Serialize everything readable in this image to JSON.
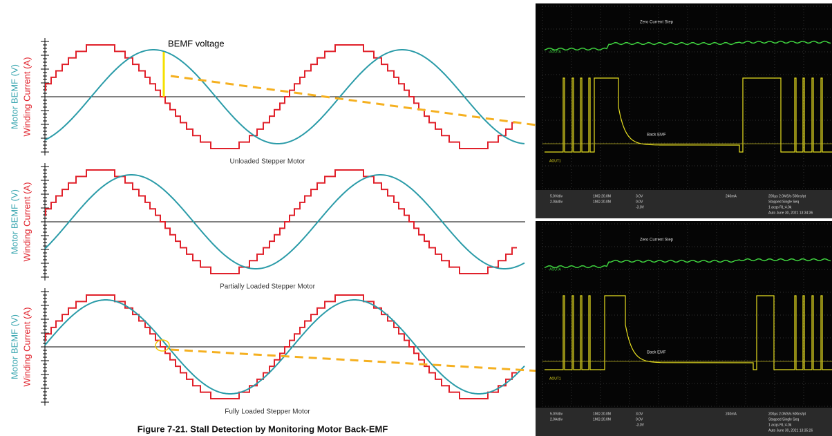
{
  "annotation": "BEMF voltage",
  "figure_caption": "Figure 7-21. Stall Detection by Monitoring Motor Back-EMF",
  "panels": [
    {
      "caption": "Unloaded Stepper Motor",
      "bemf_label": "Motor BEMF (V)",
      "current_label": "Winding Current (A)"
    },
    {
      "caption": "Partially Loaded Stepper Motor",
      "bemf_label": "Motor BEMF (V)",
      "current_label": "Winding Current (A)"
    },
    {
      "caption": "Fully Loaded Stepper Motor",
      "bemf_label": "Motor BEMF (V)",
      "current_label": "Winding Current (A)"
    }
  ],
  "scopes": [
    {
      "top_trace": "Zero Current Step",
      "bottom_trace": "Back EMF",
      "ch_a": "AOUTA",
      "ch_b": "AOUT1",
      "scales": [
        "5.0V/div",
        "2.0A/div"
      ],
      "inputs": [
        "1MΩ 20.0M",
        "1MΩ 20.0M"
      ],
      "levels": [
        "3.0V",
        "0.0V",
        "-3.0V"
      ],
      "trigger": "240mA",
      "status": [
        "200µs  2.0MS/s  500ns/pt",
        "Stopped  Single Seq",
        "1 acqs  RL:4.0k",
        "Auto  June 30, 2021  13:34:36"
      ]
    },
    {
      "top_trace": "Zero Current Step",
      "bottom_trace": "Back EMF",
      "ch_a": "AOUTA",
      "ch_b": "AOUT1",
      "scales": [
        "5.0V/div",
        "2.0A/div"
      ],
      "inputs": [
        "1MΩ 20.0M",
        "1MΩ 20.0M"
      ],
      "levels": [
        "3.0V",
        "0.0V",
        "-3.0V"
      ],
      "trigger": "240mA",
      "status": [
        "200µs  2.0MS/s  500ns/pt",
        "Stopped  Single Seq",
        "1 acqs  RL:4.0k",
        "Auto  June 30, 2021  13:35:26"
      ]
    }
  ]
}
